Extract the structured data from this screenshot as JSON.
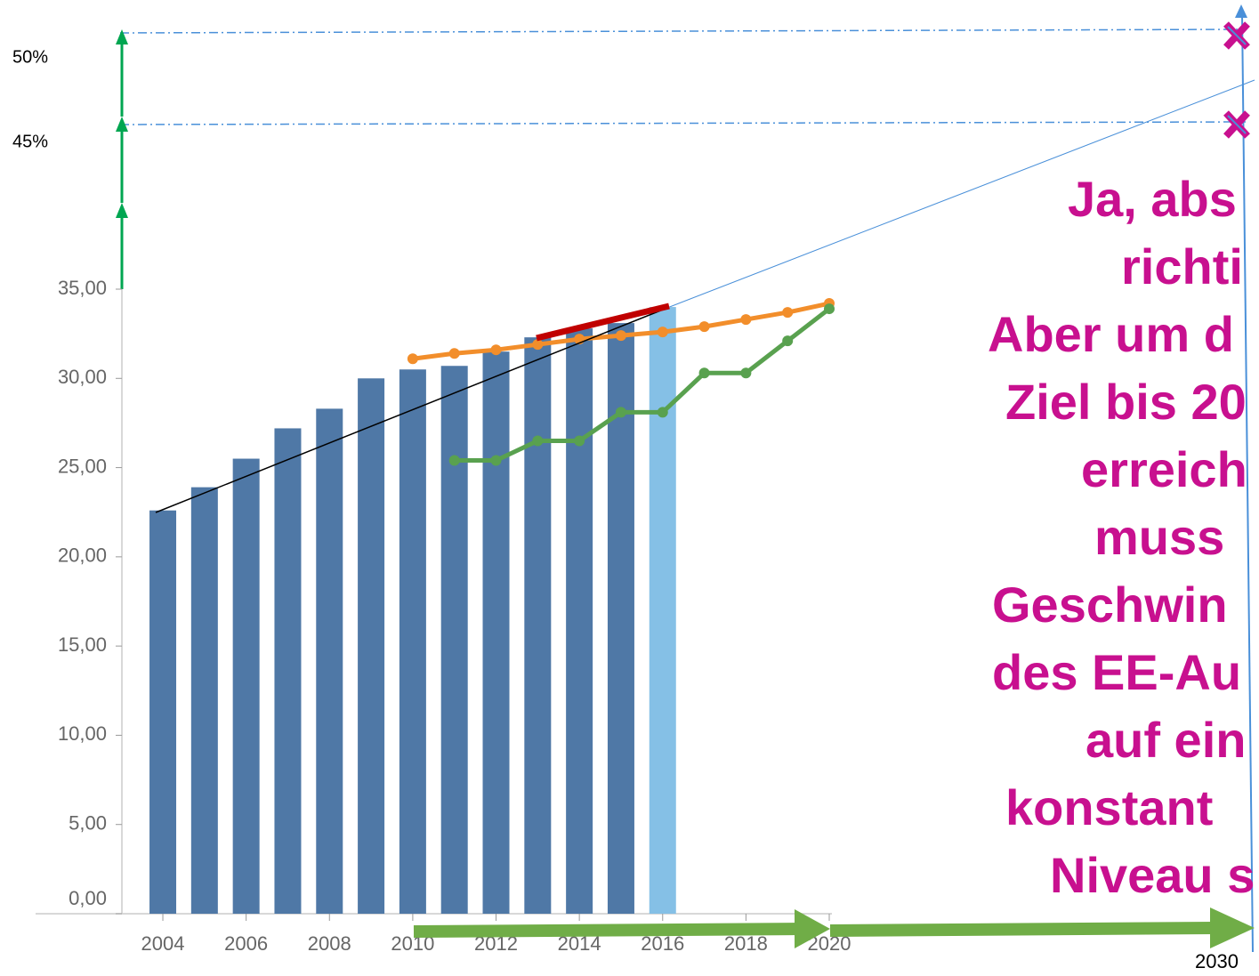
{
  "chart_data": {
    "type": "bar",
    "x": [
      2004,
      2005,
      2006,
      2007,
      2008,
      2009,
      2010,
      2011,
      2012,
      2013,
      2014,
      2015,
      2016
    ],
    "values": [
      22.6,
      23.9,
      25.5,
      27.2,
      28.3,
      30.0,
      30.5,
      30.7,
      31.5,
      32.3,
      32.8,
      33.1,
      34.0
    ],
    "colors": [
      "#4f78a6",
      "#4f78a6",
      "#4f78a6",
      "#4f78a6",
      "#4f78a6",
      "#4f78a6",
      "#4f78a6",
      "#4f78a6",
      "#4f78a6",
      "#4f78a6",
      "#4f78a6",
      "#4f78a6",
      "#85c0e6"
    ],
    "series": [
      {
        "type": "line",
        "color": "#f28e2b",
        "x": [
          2010,
          2011,
          2012,
          2013,
          2014,
          2015,
          2016,
          2017,
          2018,
          2019,
          2020
        ],
        "values": [
          31.1,
          31.4,
          31.6,
          31.9,
          32.2,
          32.4,
          32.6,
          32.9,
          33.3,
          33.7,
          34.2
        ]
      },
      {
        "type": "line",
        "color": "#59a14f",
        "x": [
          2011,
          2012,
          2013,
          2014,
          2015,
          2016,
          2017,
          2018,
          2019,
          2020
        ],
        "values": [
          25.4,
          25.4,
          26.5,
          26.5,
          28.1,
          28.1,
          30.3,
          30.3,
          32.1,
          33.9
        ]
      }
    ],
    "xlim": [
      2001,
      2020
    ],
    "ylim": [
      0,
      35
    ],
    "xticks": [
      2004,
      2006,
      2008,
      2010,
      2012,
      2014,
      2016,
      2018,
      2020
    ],
    "yticks": [
      {
        "value": 0,
        "label": "0,00"
      },
      {
        "value": 5,
        "label": "5,00"
      },
      {
        "value": 10,
        "label": "10,00"
      },
      {
        "value": 15,
        "label": "15,00"
      },
      {
        "value": 20,
        "label": "20,00"
      },
      {
        "value": 25,
        "label": "25,00"
      },
      {
        "value": 30,
        "label": "30,00"
      },
      {
        "value": 35,
        "label": "35,00"
      }
    ],
    "annotations": [
      "50%",
      "45%",
      "2030"
    ],
    "comment": [
      "Ja, abs",
      "richti",
      "Aber um d",
      "Ziel bis 20",
      "erreich",
      "muss",
      "Geschwin",
      "des EE-Au",
      "auf ein",
      "konstant",
      "Niveau s"
    ]
  }
}
